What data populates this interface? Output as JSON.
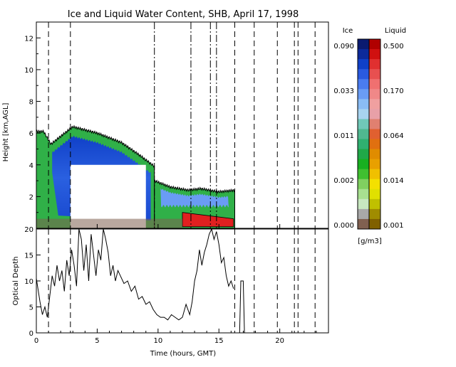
{
  "chart_data": [
    {
      "type": "heatmap",
      "title": "Ice and Liquid Water Content, SHB, April 17, 1998",
      "ylabel": "Height [km,AGL]",
      "xlim": [
        0,
        24
      ],
      "ylim": [
        0,
        13
      ],
      "yticks": [
        2,
        4,
        6,
        8,
        10,
        12
      ],
      "cloud_regions": [
        {
          "name": "ice-cloud-deck",
          "phase": "ice",
          "x_start": 0.0,
          "x_end": 9.7,
          "top_km": [
            6.1,
            6.1,
            5.3,
            5.8,
            6.4,
            6.2,
            6.0,
            5.7,
            5.4,
            4.6,
            3.9
          ],
          "top_x": [
            0.0,
            0.6,
            1.2,
            2.0,
            3.0,
            4.0,
            5.0,
            6.0,
            7.0,
            8.5,
            9.7
          ]
        },
        {
          "name": "low-ice-cloud",
          "phase": "ice",
          "x_start": 9.7,
          "x_end": 16.3,
          "top_km": [
            3.0,
            2.6,
            2.4,
            2.5,
            2.3,
            2.4
          ],
          "top_x": [
            9.7,
            11.0,
            12.5,
            13.5,
            15.0,
            16.3
          ]
        },
        {
          "name": "no-data-gap",
          "phase": "none",
          "x_start": 2.8,
          "x_end": 9.0,
          "top_km": [
            4.0
          ],
          "top_x": [
            2.8
          ]
        },
        {
          "name": "liquid-layer",
          "phase": "liquid",
          "x_start": 12.0,
          "x_end": 16.2,
          "top_km": [
            1.0
          ],
          "top_x": [
            12.0
          ]
        }
      ],
      "vertical_dashed_lines_hours": [
        1.0,
        2.8,
        16.3,
        17.9,
        19.8,
        21.2,
        21.5,
        22.9
      ],
      "dashdot_lines_hours": [
        9.7,
        12.7,
        14.3,
        14.8
      ]
    },
    {
      "type": "line",
      "ylabel": "Optical Depth",
      "xlabel": "Time (hours, GMT)",
      "xlim": [
        0,
        24
      ],
      "ylim": [
        0,
        20
      ],
      "xticks": [
        0,
        5,
        10,
        15,
        20
      ],
      "yticks": [
        0,
        5,
        10,
        15,
        20
      ],
      "x": [
        0.0,
        0.3,
        0.5,
        0.7,
        0.9,
        1.1,
        1.3,
        1.5,
        1.7,
        1.9,
        2.1,
        2.3,
        2.5,
        2.7,
        2.9,
        3.1,
        3.3,
        3.5,
        3.7,
        3.9,
        4.1,
        4.3,
        4.5,
        4.7,
        4.9,
        5.1,
        5.3,
        5.5,
        5.7,
        5.9,
        6.1,
        6.3,
        6.5,
        6.7,
        6.9,
        7.2,
        7.5,
        7.8,
        8.1,
        8.4,
        8.7,
        9.0,
        9.3,
        9.6,
        9.9,
        10.2,
        10.5,
        10.8,
        11.1,
        11.4,
        11.7,
        12.0,
        12.3,
        12.6,
        12.8,
        13.0,
        13.2,
        13.4,
        13.6,
        13.8,
        14.0,
        14.2,
        14.4,
        14.6,
        14.8,
        15.0,
        15.2,
        15.4,
        15.6,
        15.8,
        16.0,
        16.2
      ],
      "values": [
        10.5,
        6.0,
        3.5,
        5.0,
        3.0,
        7.0,
        11.0,
        9.0,
        13.0,
        10.0,
        12.0,
        8.0,
        14.0,
        11.0,
        16.0,
        13.0,
        9.0,
        20.0,
        18.0,
        12.0,
        17.0,
        10.0,
        19.0,
        15.0,
        11.0,
        16.0,
        14.0,
        20.0,
        18.0,
        15.5,
        11.0,
        13.0,
        10.0,
        12.0,
        11.0,
        9.5,
        10.0,
        8.0,
        9.0,
        6.5,
        7.0,
        5.5,
        6.0,
        4.5,
        3.5,
        3.0,
        3.0,
        2.5,
        3.5,
        3.0,
        2.5,
        3.0,
        5.5,
        3.5,
        6.0,
        10.0,
        12.0,
        16.0,
        13.0,
        15.5,
        17.0,
        19.0,
        20.0,
        18.0,
        19.5,
        17.0,
        13.5,
        14.5,
        11.0,
        9.0,
        10.0,
        8.5
      ],
      "extra_segment": {
        "x": [
          16.7,
          16.8,
          17.0,
          17.1
        ],
        "values": [
          0,
          10.0,
          10.0,
          0
        ]
      },
      "vertical_dashed_lines_hours": [
        1.0,
        2.8,
        16.3,
        17.9,
        19.8,
        21.2,
        21.5,
        22.9
      ]
    }
  ],
  "colorbar": {
    "ice_label": "Ice",
    "liquid_label": "Liquid",
    "units": "[g/m3]",
    "ice_ticks": [
      "0.090",
      "0.033",
      "0.011",
      "0.002",
      "0.000"
    ],
    "liquid_ticks": [
      "0.500",
      "0.170",
      "0.064",
      "0.014",
      "0.001"
    ],
    "ice_colors": [
      "#0a1a70",
      "#0c2a9a",
      "#1040c8",
      "#2a5ae0",
      "#4a7cf0",
      "#6a9cf4",
      "#8abcf4",
      "#a8d4f0",
      "#70c8b8",
      "#50b890",
      "#30b070",
      "#20a848",
      "#18b020",
      "#40c030",
      "#80d060",
      "#a8e090",
      "#c8e8c0",
      "#a8a8a8",
      "#806050"
    ],
    "liquid_colors": [
      "#b00000",
      "#d01010",
      "#e03030",
      "#e85050",
      "#f07070",
      "#f08888",
      "#f0a0a0",
      "#e8a0a8",
      "#e08070",
      "#e06030",
      "#e07010",
      "#e08c00",
      "#e8a000",
      "#f0c000",
      "#f4e000",
      "#e0e000",
      "#c0c000",
      "#a08c00",
      "#806000"
    ]
  }
}
